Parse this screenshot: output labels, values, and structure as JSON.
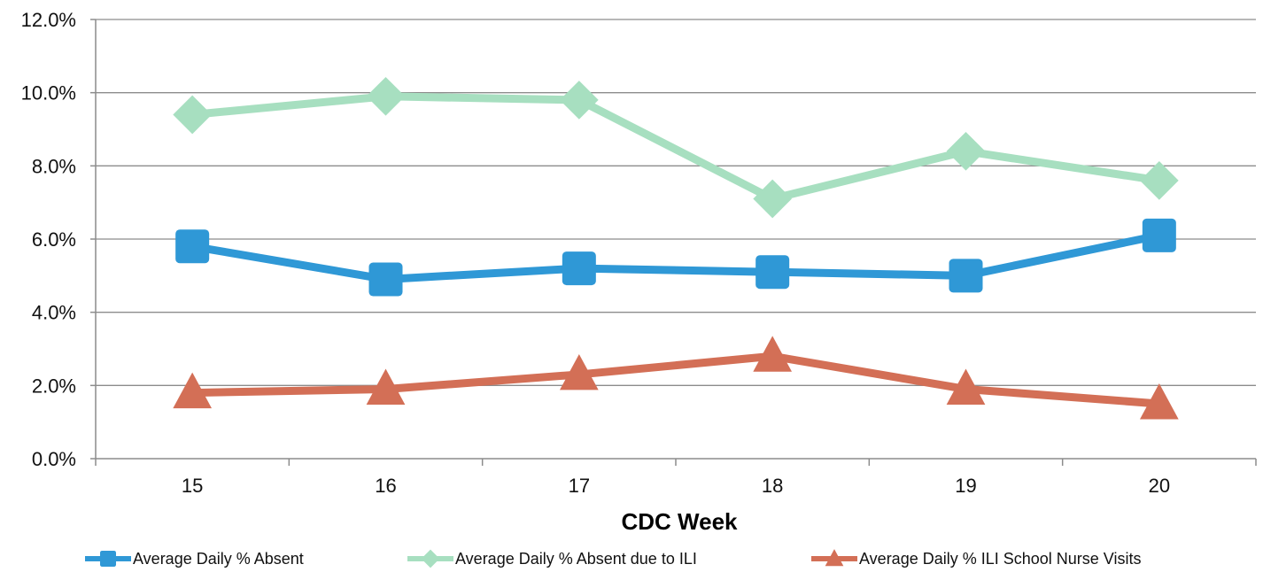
{
  "chart_data": {
    "type": "line",
    "title": "",
    "xlabel": "CDC Week",
    "ylabel": "",
    "categories": [
      "15",
      "16",
      "17",
      "18",
      "19",
      "20"
    ],
    "ylim": [
      0,
      12
    ],
    "y_ticks": [
      "0.0%",
      "2.0%",
      "4.0%",
      "6.0%",
      "8.0%",
      "10.0%",
      "12.0%"
    ],
    "grid": "horizontal",
    "legend_position": "bottom",
    "series": [
      {
        "name": "Average Daily % Absent",
        "color": "#2f98d6",
        "marker": "square",
        "values": [
          5.8,
          4.9,
          5.2,
          5.1,
          5.0,
          6.1
        ]
      },
      {
        "name": "Average Daily % Absent due to ILI",
        "color": "#a7dfc0",
        "marker": "diamond",
        "values": [
          9.4,
          9.9,
          9.8,
          7.1,
          8.4,
          7.6
        ]
      },
      {
        "name": "Average Daily % ILI School Nurse Visits",
        "color": "#d36f56",
        "marker": "triangle",
        "values": [
          1.8,
          1.9,
          2.3,
          2.8,
          1.9,
          1.5
        ]
      }
    ]
  }
}
